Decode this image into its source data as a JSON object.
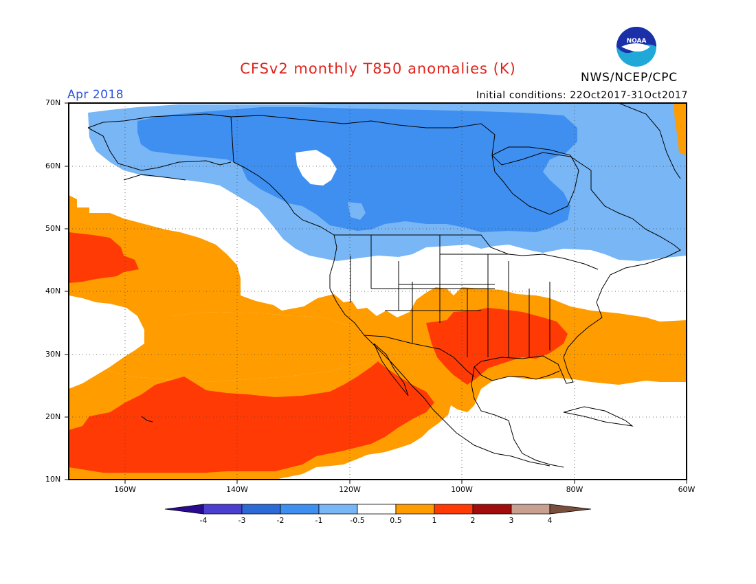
{
  "title": "CFSv2 monthly T850 anomalies (K)",
  "month": "Apr 2018",
  "initial_conditions": "Initial conditions: 22Oct2017-31Oct2017",
  "agency": "NWS/NCEP/CPC",
  "logo_text": "NOAA",
  "colors": {
    "title": "#e0241c",
    "month": "#2a52e0",
    "cat_m4": "#2a0b8f",
    "cat_m3": "#4b3fd0",
    "cat_m2": "#2c6ad8",
    "cat_m1": "#3f8ff0",
    "cat_m05": "#78b6f5",
    "cat_0": "#ffffff",
    "cat_p05": "#ff9c00",
    "cat_p1": "#ff3a05",
    "cat_p2": "#a30c0c",
    "cat_p3": "#c9a090",
    "cat_p4": "#7a4e3c"
  },
  "map": {
    "lat_range": [
      10,
      70
    ],
    "lon_range": [
      -170,
      -60
    ],
    "lat_ticks": [
      "70N",
      "60N",
      "50N",
      "40N",
      "30N",
      "20N",
      "10N"
    ],
    "lon_ticks": [
      "160W",
      "140W",
      "120W",
      "100W",
      "80W",
      "60W"
    ],
    "grid": "dotted"
  },
  "colorbar": {
    "labels": [
      "-4",
      "-3",
      "-2",
      "-1",
      "-0.5",
      "0.5",
      "1",
      "2",
      "3",
      "4"
    ]
  }
}
